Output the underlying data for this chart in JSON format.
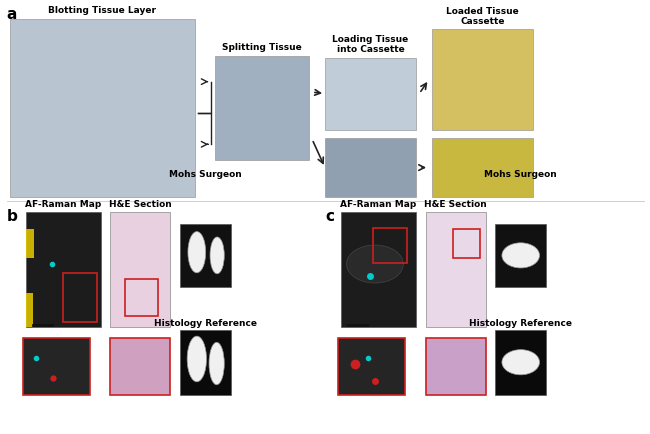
{
  "fig_width": 6.5,
  "fig_height": 4.35,
  "dpi": 100,
  "background_color": "#ffffff",
  "panel_a_label": "a",
  "panel_b_label": "b",
  "panel_c_label": "c",
  "top_labels": [
    "Blotting Tissue Layer",
    "Splitting Tissue",
    "Loading Tissue\ninto Cassette",
    "Loaded Tissue\nCassette"
  ],
  "b_col_labels": [
    "AF-Raman Map",
    "H&E Section",
    "Mohs Surgeon"
  ],
  "c_col_labels": [
    "AF-Raman Map",
    "H&E Section",
    "Mohs Surgeon"
  ],
  "b_histology_label": "Histology Reference",
  "c_histology_label": "Histology Reference",
  "arrow_color": "#222222",
  "border_color": "#cccccc",
  "label_fontsize": 7,
  "panel_label_fontsize": 11,
  "title_fontsize": 6.5,
  "blotting_color": "#b8c4d0",
  "splitting_color": "#a0b0c0",
  "loading_top_color": "#c0ccd8",
  "loaded_top_color": "#d4c060",
  "loading_bot_color": "#90a0b0",
  "loaded_bot_color": "#c8b840",
  "yellow_accent": "#f0d000",
  "red_accent": "#cc2020",
  "cyan_accent": "#00c0c0",
  "scalebar_color": "#111111"
}
